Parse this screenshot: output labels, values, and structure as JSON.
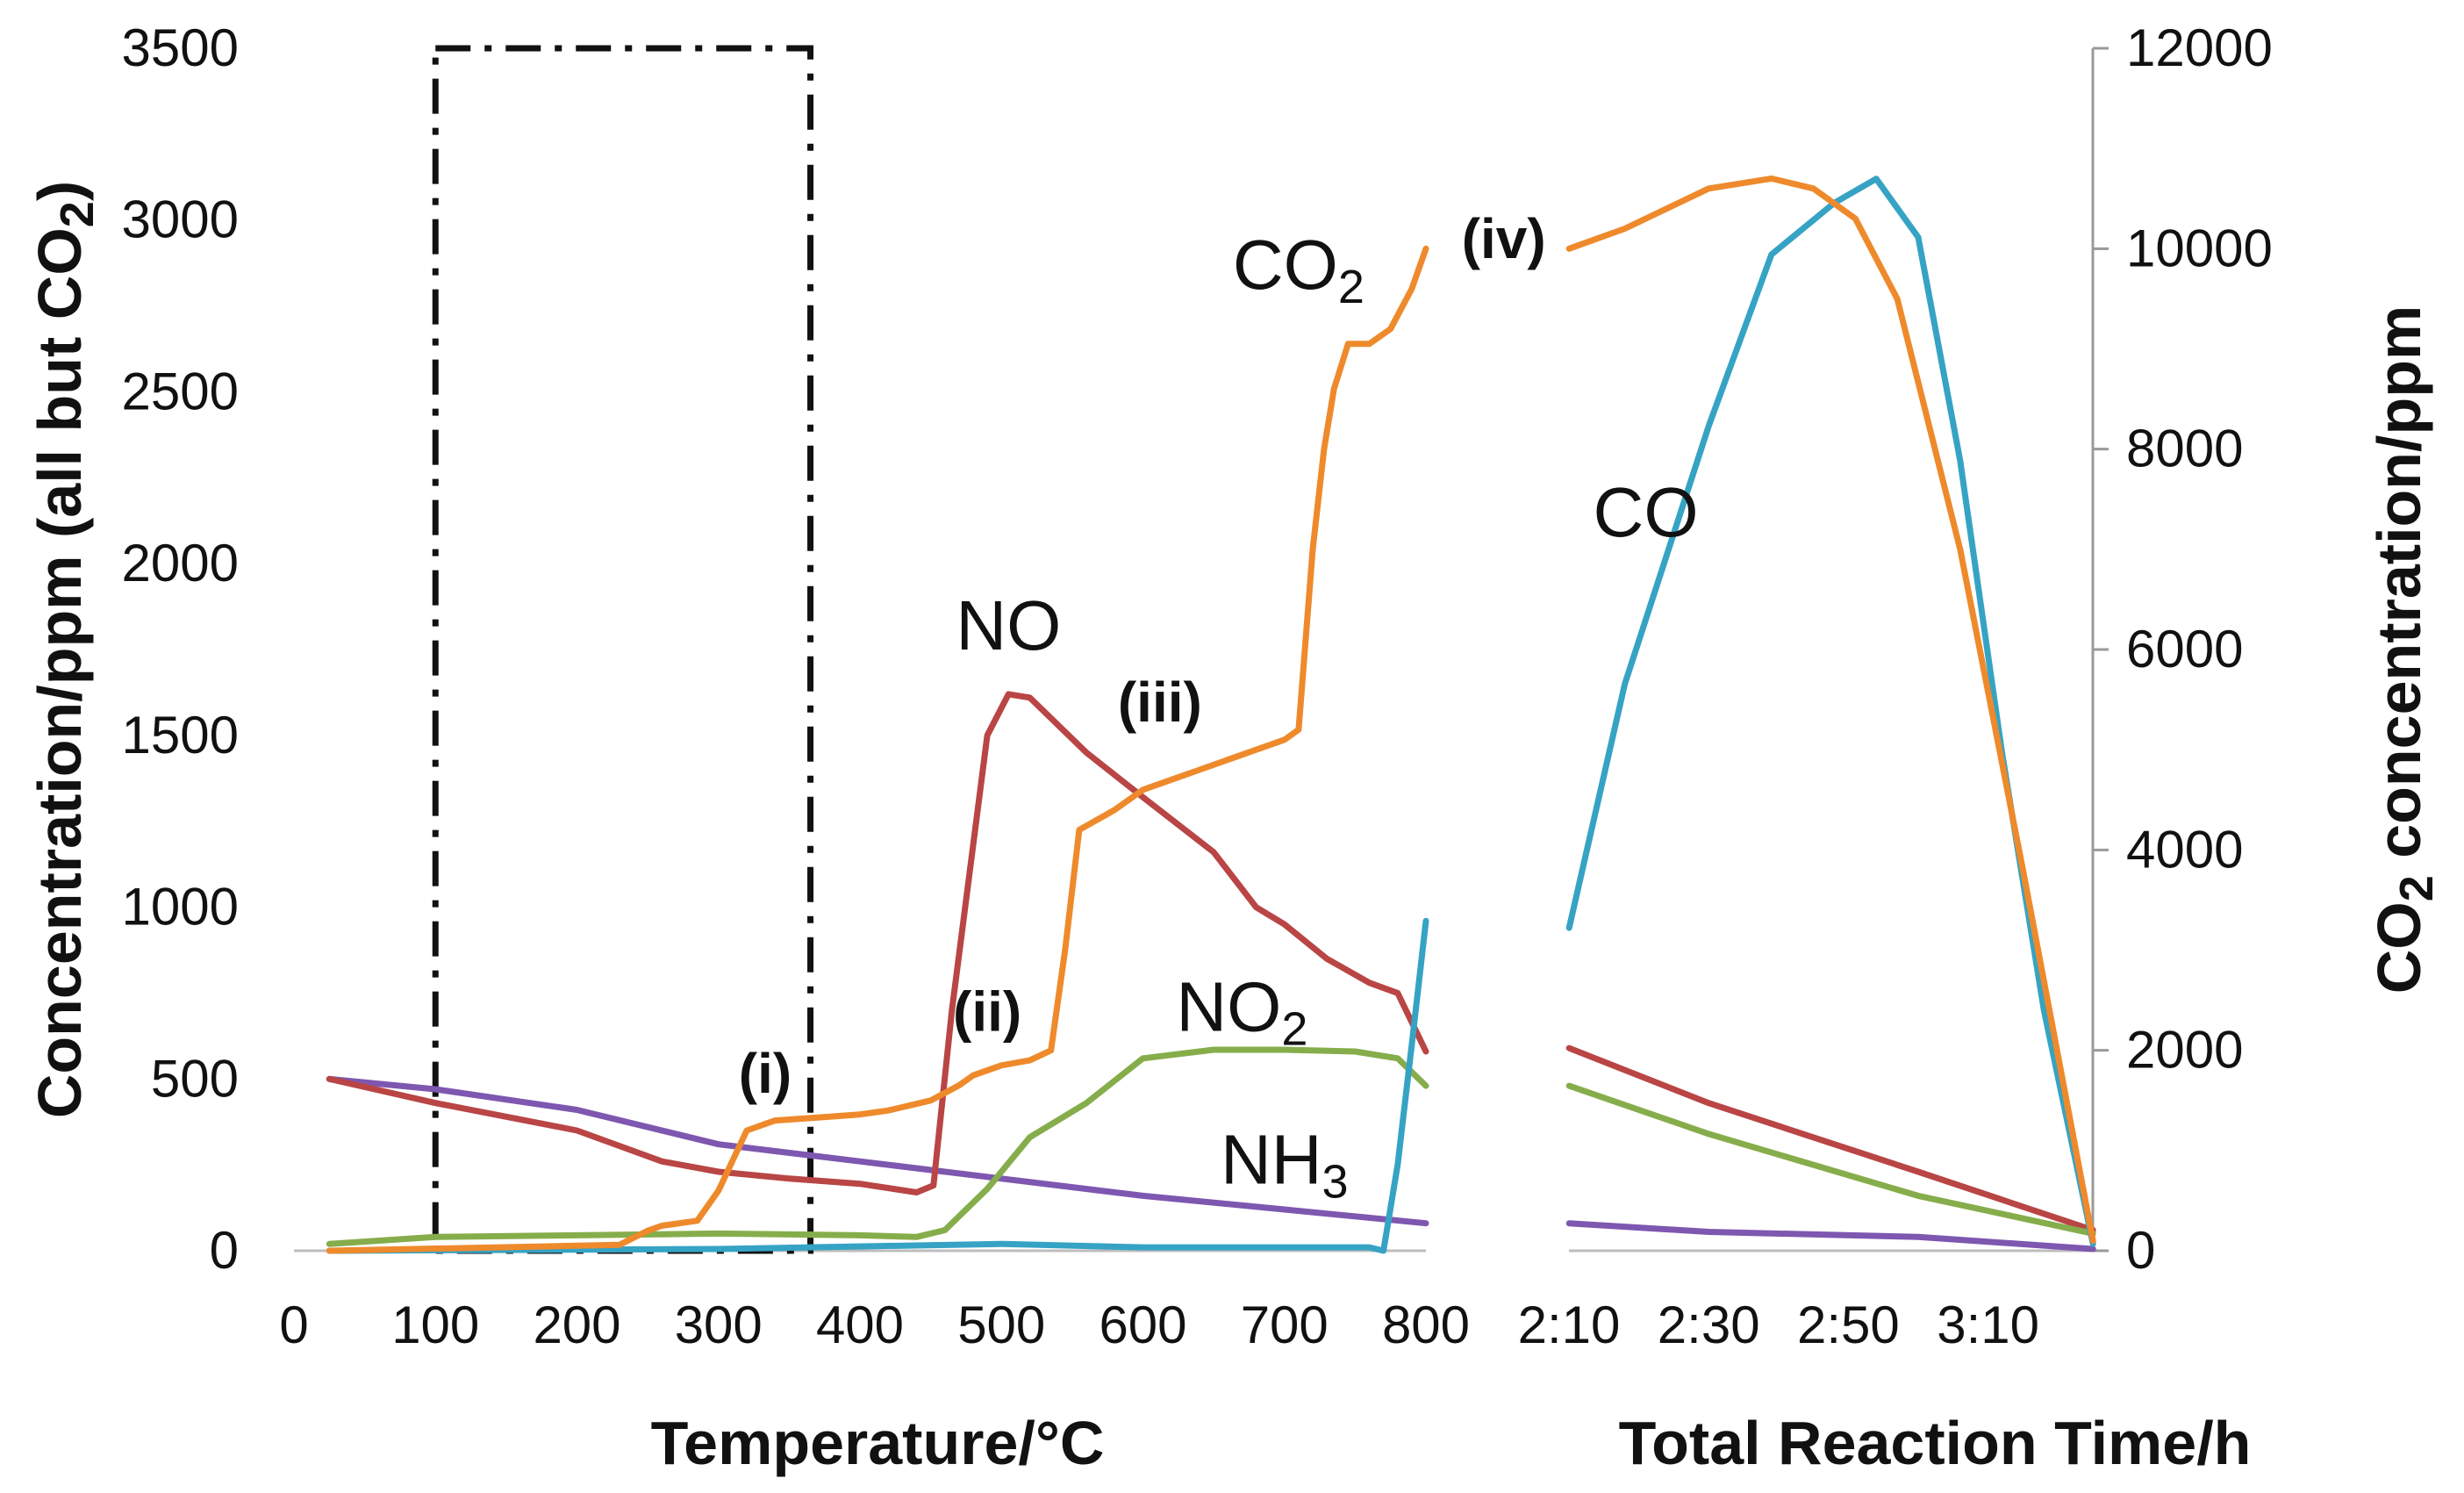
{
  "chart_data": {
    "type": "line",
    "left_axis": {
      "title_main": "Concentration/ppm (all but CO",
      "title_sub": "2",
      "title_tail": ")",
      "ylim": [
        0,
        3500
      ],
      "ticks": [
        "0",
        "500",
        "1000",
        "1500",
        "2000",
        "2500",
        "3000",
        "3500"
      ]
    },
    "right_axis": {
      "title_pre": "CO",
      "title_sub": "2",
      "title_post": " concentration/ppm",
      "ylim": [
        0,
        12000
      ],
      "ticks": [
        "0",
        "2000",
        "4000",
        "6000",
        "8000",
        "10000",
        "12000"
      ]
    },
    "temperature_axis": {
      "title": "Temperature/°C",
      "xlim": [
        0,
        800
      ],
      "ticks": [
        "0",
        "100",
        "200",
        "300",
        "400",
        "500",
        "600",
        "700",
        "800"
      ]
    },
    "time_axis": {
      "title": "Total Reaction Time/h",
      "ticks": [
        "2:10",
        "2:30",
        "2:50",
        "3:10"
      ]
    },
    "highlight_box": {
      "x_range": [
        100,
        365
      ],
      "y_range": [
        0,
        3500
      ]
    },
    "series": [
      {
        "name": "NH3",
        "label_main": "NH",
        "label_sub": "3",
        "color": "#7e57b0",
        "axis": "left",
        "temp_points": [
          [
            25,
            500
          ],
          [
            100,
            470
          ],
          [
            200,
            410
          ],
          [
            300,
            310
          ],
          [
            400,
            260
          ],
          [
            500,
            210
          ],
          [
            600,
            160
          ],
          [
            700,
            120
          ],
          [
            800,
            80
          ]
        ],
        "time_points": [
          [
            2.167,
            80
          ],
          [
            2.5,
            55
          ],
          [
            3.0,
            40
          ],
          [
            3.417,
            5
          ]
        ]
      },
      {
        "name": "NO",
        "label_main": "NO",
        "label_sub": "",
        "color": "#b94545",
        "axis": "left",
        "temp_points": [
          [
            25,
            500
          ],
          [
            100,
            430
          ],
          [
            150,
            390
          ],
          [
            200,
            350
          ],
          [
            260,
            260
          ],
          [
            300,
            230
          ],
          [
            350,
            210
          ],
          [
            400,
            195
          ],
          [
            440,
            170
          ],
          [
            452,
            190
          ],
          [
            465,
            700
          ],
          [
            490,
            1500
          ],
          [
            505,
            1620
          ],
          [
            520,
            1610
          ],
          [
            560,
            1450
          ],
          [
            600,
            1320
          ],
          [
            650,
            1160
          ],
          [
            680,
            1000
          ],
          [
            700,
            950
          ],
          [
            730,
            850
          ],
          [
            760,
            780
          ],
          [
            780,
            750
          ],
          [
            800,
            580
          ]
        ],
        "time_points": [
          [
            2.167,
            590
          ],
          [
            2.5,
            430
          ],
          [
            3.0,
            230
          ],
          [
            3.417,
            60
          ]
        ]
      },
      {
        "name": "NO2",
        "label_main": "NO",
        "label_sub": "2",
        "color": "#86ad4b",
        "axis": "left",
        "temp_points": [
          [
            25,
            20
          ],
          [
            100,
            40
          ],
          [
            200,
            45
          ],
          [
            300,
            50
          ],
          [
            400,
            45
          ],
          [
            440,
            40
          ],
          [
            460,
            60
          ],
          [
            490,
            180
          ],
          [
            520,
            330
          ],
          [
            560,
            430
          ],
          [
            600,
            560
          ],
          [
            650,
            585
          ],
          [
            700,
            585
          ],
          [
            750,
            580
          ],
          [
            780,
            560
          ],
          [
            800,
            480
          ]
        ],
        "time_points": [
          [
            2.167,
            480
          ],
          [
            2.5,
            340
          ],
          [
            3.0,
            160
          ],
          [
            3.417,
            50
          ]
        ]
      },
      {
        "name": "CO",
        "label_main": "CO",
        "label_sub": "",
        "color": "#36a3c4",
        "axis": "left",
        "temp_points": [
          [
            25,
            0
          ],
          [
            300,
            5
          ],
          [
            500,
            20
          ],
          [
            600,
            10
          ],
          [
            700,
            10
          ],
          [
            760,
            10
          ],
          [
            770,
            0
          ],
          [
            780,
            250
          ],
          [
            790,
            600
          ],
          [
            800,
            960
          ]
        ],
        "time_points": [
          [
            2.167,
            940
          ],
          [
            2.3,
            1650
          ],
          [
            2.5,
            2400
          ],
          [
            2.65,
            2900
          ],
          [
            2.8,
            3050
          ],
          [
            2.9,
            3120
          ],
          [
            3.0,
            2950
          ],
          [
            3.1,
            2300
          ],
          [
            3.2,
            1450
          ],
          [
            3.3,
            700
          ],
          [
            3.417,
            20
          ]
        ]
      },
      {
        "name": "CO2",
        "label_main": "CO",
        "label_sub": "2",
        "color": "#ee8a2c",
        "axis": "right",
        "temp_points": [
          [
            25,
            0
          ],
          [
            200,
            50
          ],
          [
            230,
            60
          ],
          [
            250,
            200
          ],
          [
            260,
            250
          ],
          [
            285,
            300
          ],
          [
            300,
            600
          ],
          [
            320,
            1200
          ],
          [
            340,
            1300
          ],
          [
            370,
            1330
          ],
          [
            400,
            1360
          ],
          [
            420,
            1400
          ],
          [
            450,
            1500
          ],
          [
            470,
            1650
          ],
          [
            480,
            1750
          ],
          [
            500,
            1850
          ],
          [
            520,
            1900
          ],
          [
            535,
            2000
          ],
          [
            545,
            3000
          ],
          [
            555,
            4200
          ],
          [
            580,
            4400
          ],
          [
            600,
            4600
          ],
          [
            640,
            4800
          ],
          [
            680,
            5000
          ],
          [
            700,
            5100
          ],
          [
            710,
            5200
          ],
          [
            720,
            7000
          ],
          [
            728,
            8000
          ],
          [
            735,
            8600
          ],
          [
            745,
            9050
          ],
          [
            760,
            9050
          ],
          [
            775,
            9200
          ],
          [
            790,
            9600
          ],
          [
            800,
            10000
          ]
        ],
        "time_points": [
          [
            2.167,
            10000
          ],
          [
            2.3,
            10200
          ],
          [
            2.5,
            10600
          ],
          [
            2.65,
            10700
          ],
          [
            2.75,
            10600
          ],
          [
            2.85,
            10300
          ],
          [
            2.95,
            9500
          ],
          [
            3.1,
            7000
          ],
          [
            3.25,
            3800
          ],
          [
            3.417,
            100
          ]
        ]
      }
    ],
    "annotations": [
      "(i)",
      "(ii)",
      "(iii)",
      "(iv)"
    ]
  }
}
